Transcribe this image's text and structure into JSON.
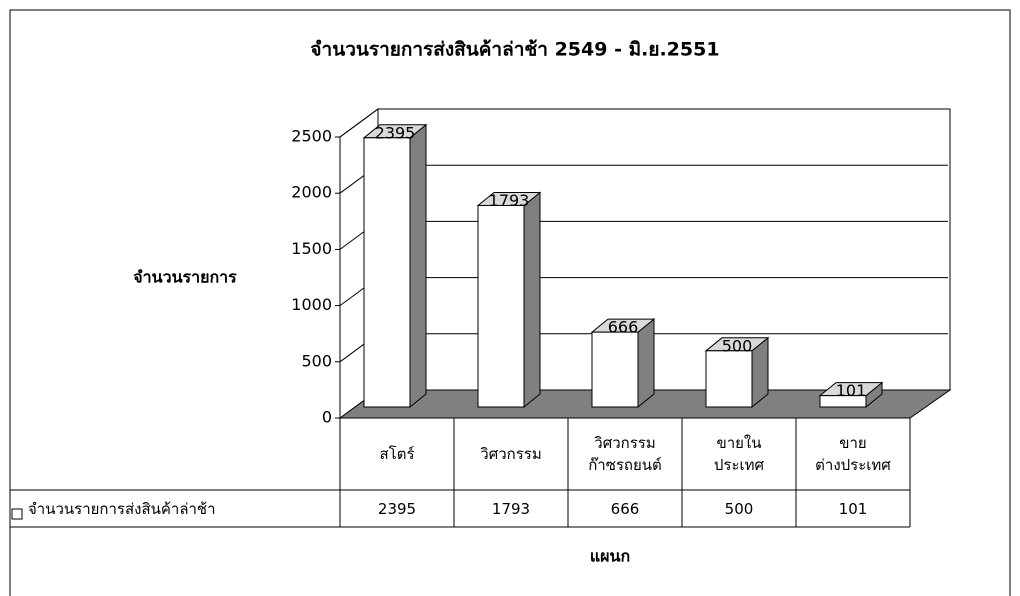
{
  "chart_data": {
    "type": "bar3d",
    "title": "จำนวนรายการส่งสินค้าล่าช้า 2549 - มิ.ย.2551",
    "y_label": "จำนวนรายการ",
    "x_label": "แผนก",
    "categories": [
      "สโตร์",
      "วิศวกรรม",
      "วิศวกรรม\nก๊าซรถยนต์",
      "ขายใน\nประเทศ",
      "ขาย\nต่างประเทศ"
    ],
    "series": [
      {
        "name": "จำนวนรายการส่งสินค้าล่าช้า",
        "color": "#ffffff",
        "values": [
          2395,
          1793,
          666,
          500,
          101
        ]
      }
    ],
    "ylim": [
      0,
      2500
    ],
    "yticks": [
      0,
      500,
      1000,
      1500,
      2000,
      2500
    ],
    "grid": true,
    "data_table": true
  }
}
